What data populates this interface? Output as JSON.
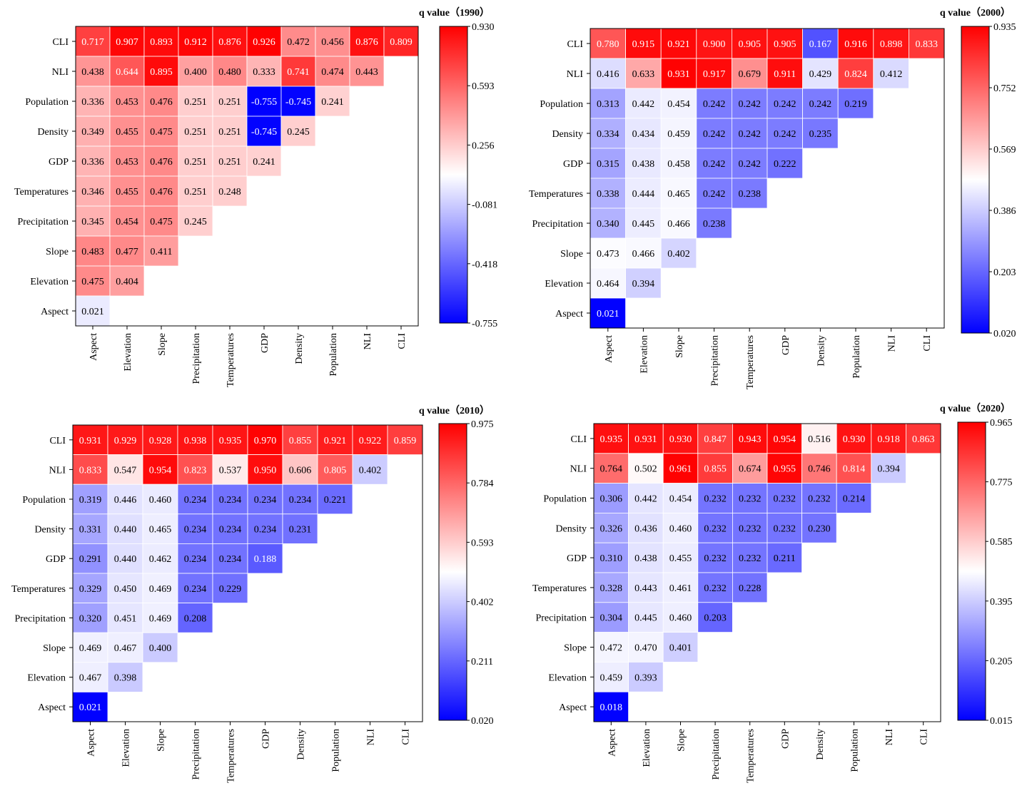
{
  "chart_data": [
    {
      "type": "heatmap",
      "colorbar_title": "q value（1990）",
      "vmin": -0.755,
      "vmax": 0.93,
      "colorbar_ticks": [
        "0.930",
        "0.593",
        "0.256",
        "-0.081",
        "-0.418",
        "-0.755"
      ],
      "row_labels": [
        "CLI",
        "NLI",
        "Population",
        "Density",
        "GDP",
        "Temperatures",
        "Precipitation",
        "Slope",
        "Elevation",
        "Aspect"
      ],
      "col_labels": [
        "Aspect",
        "Elevation",
        "Slope",
        "Precipitation",
        "Temperatures",
        "GDP",
        "Density",
        "Population",
        "NLI",
        "CLI"
      ],
      "values": [
        [
          "0.717",
          "0.907",
          "0.893",
          "0.912",
          "0.876",
          "0.926",
          "0.472",
          "0.456",
          "0.876",
          "0.809"
        ],
        [
          "0.438",
          "0.644",
          "0.895",
          "0.400",
          "0.480",
          "0.333",
          "0.741",
          "0.474",
          "0.443"
        ],
        [
          "0.336",
          "0.453",
          "0.476",
          "0.251",
          "0.251",
          "-0.755",
          "-0.745",
          "0.241"
        ],
        [
          "0.349",
          "0.455",
          "0.475",
          "0.251",
          "0.251",
          "-0.745",
          "0.245"
        ],
        [
          "0.336",
          "0.453",
          "0.476",
          "0.251",
          "0.251",
          "0.241"
        ],
        [
          "0.346",
          "0.455",
          "0.476",
          "0.251",
          "0.248"
        ],
        [
          "0.345",
          "0.454",
          "0.475",
          "0.245"
        ],
        [
          "0.483",
          "0.477",
          "0.411"
        ],
        [
          "0.475",
          "0.404"
        ],
        [
          "0.021"
        ]
      ]
    },
    {
      "type": "heatmap",
      "colorbar_title": "q value（2000）",
      "vmin": 0.02,
      "vmax": 0.935,
      "colorbar_ticks": [
        "0.935",
        "0.752",
        "0.569",
        "0.386",
        "0.203",
        "0.020"
      ],
      "row_labels": [
        "CLI",
        "NLI",
        "Population",
        "Density",
        "GDP",
        "Temperatures",
        "Precipitation",
        "Slope",
        "Elevation",
        "Aspect"
      ],
      "col_labels": [
        "Aspect",
        "Elevation",
        "Slope",
        "Precipitation",
        "Temperatures",
        "GDP",
        "Density",
        "Population",
        "NLI",
        "CLI"
      ],
      "values": [
        [
          "0.780",
          "0.915",
          "0.921",
          "0.900",
          "0.905",
          "0.905",
          "0.167",
          "0.916",
          "0.898",
          "0.833"
        ],
        [
          "0.416",
          "0.633",
          "0.931",
          "0.917",
          "0.679",
          "0.911",
          "0.429",
          "0.824",
          "0.412"
        ],
        [
          "0.313",
          "0.442",
          "0.454",
          "0.242",
          "0.242",
          "0.242",
          "0.242",
          "0.219"
        ],
        [
          "0.334",
          "0.434",
          "0.459",
          "0.242",
          "0.242",
          "0.242",
          "0.235"
        ],
        [
          "0.315",
          "0.438",
          "0.458",
          "0.242",
          "0.242",
          "0.222"
        ],
        [
          "0.338",
          "0.444",
          "0.465",
          "0.242",
          "0.238"
        ],
        [
          "0.340",
          "0.445",
          "0.466",
          "0.238"
        ],
        [
          "0.473",
          "0.466",
          "0.402"
        ],
        [
          "0.464",
          "0.394"
        ],
        [
          "0.021"
        ]
      ]
    },
    {
      "type": "heatmap",
      "colorbar_title": "q value（2010）",
      "vmin": 0.02,
      "vmax": 0.975,
      "colorbar_ticks": [
        "0.975",
        "0.784",
        "0.593",
        "0.402",
        "0.211",
        "0.020"
      ],
      "row_labels": [
        "CLI",
        "NLI",
        "Population",
        "Density",
        "GDP",
        "Temperatures",
        "Precipitation",
        "Slope",
        "Elevation",
        "Aspect"
      ],
      "col_labels": [
        "Aspect",
        "Elevation",
        "Slope",
        "Precipitation",
        "Temperatures",
        "GDP",
        "Density",
        "Population",
        "NLI",
        "CLI"
      ],
      "values": [
        [
          "0.931",
          "0.929",
          "0.928",
          "0.938",
          "0.935",
          "0.970",
          "0.855",
          "0.921",
          "0.922",
          "0.859"
        ],
        [
          "0.833",
          "0.547",
          "0.954",
          "0.823",
          "0.537",
          "0.950",
          "0.606",
          "0.805",
          "0.402"
        ],
        [
          "0.319",
          "0.446",
          "0.460",
          "0.234",
          "0.234",
          "0.234",
          "0.234",
          "0.221"
        ],
        [
          "0.331",
          "0.440",
          "0.465",
          "0.234",
          "0.234",
          "0.234",
          "0.231"
        ],
        [
          "0.291",
          "0.440",
          "0.462",
          "0.234",
          "0.234",
          "0.188"
        ],
        [
          "0.329",
          "0.450",
          "0.469",
          "0.234",
          "0.229"
        ],
        [
          "0.320",
          "0.451",
          "0.469",
          "0.208"
        ],
        [
          "0.469",
          "0.467",
          "0.400"
        ],
        [
          "0.467",
          "0.398"
        ],
        [
          "0.021"
        ]
      ]
    },
    {
      "type": "heatmap",
      "colorbar_title": "q value（2020）",
      "vmin": 0.015,
      "vmax": 0.965,
      "colorbar_ticks": [
        "0.965",
        "0.775",
        "0.585",
        "0.395",
        "0.205",
        "0.015"
      ],
      "row_labels": [
        "CLI",
        "NLI",
        "Population",
        "Density",
        "GDP",
        "Temperatures",
        "Precipitation",
        "Slope",
        "Elevation",
        "Aspect"
      ],
      "col_labels": [
        "Aspect",
        "Elevation",
        "Slope",
        "Precipitation",
        "Temperatures",
        "GDP",
        "Density",
        "Population",
        "NLI",
        "CLI"
      ],
      "values": [
        [
          "0.935",
          "0.931",
          "0.930",
          "0.847",
          "0.943",
          "0.954",
          "0.516",
          "0.930",
          "0.918",
          "0.863"
        ],
        [
          "0.764",
          "0.502",
          "0.961",
          "0.855",
          "0.674",
          "0.955",
          "0.746",
          "0.814",
          "0.394"
        ],
        [
          "0.306",
          "0.442",
          "0.454",
          "0.232",
          "0.232",
          "0.232",
          "0.232",
          "0.214"
        ],
        [
          "0.326",
          "0.436",
          "0.460",
          "0.232",
          "0.232",
          "0.232",
          "0.230"
        ],
        [
          "0.310",
          "0.438",
          "0.455",
          "0.232",
          "0.232",
          "0.211"
        ],
        [
          "0.328",
          "0.443",
          "0.461",
          "0.232",
          "0.228"
        ],
        [
          "0.304",
          "0.445",
          "0.460",
          "0.203"
        ],
        [
          "0.472",
          "0.470",
          "0.401"
        ],
        [
          "0.459",
          "0.393"
        ],
        [
          "0.018"
        ]
      ]
    }
  ]
}
